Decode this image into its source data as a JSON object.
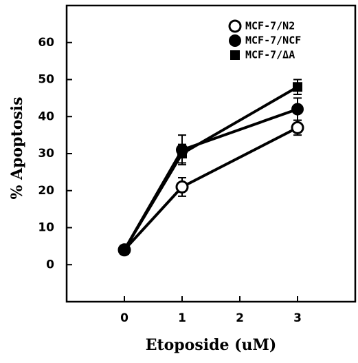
{
  "chart_data": {
    "type": "line",
    "x_label": "Etoposide (uM)",
    "y_label": "% Apoptosis",
    "x": [
      0,
      1,
      3
    ],
    "xlim": [
      -1,
      4
    ],
    "xticks": [
      0,
      1,
      2,
      3
    ],
    "ylim": [
      -10,
      70
    ],
    "yticks": [
      0,
      10,
      20,
      30,
      40,
      50,
      60
    ],
    "legend": "top-right",
    "series": [
      {
        "name": "MCF-7/N2",
        "color": "#000000",
        "marker": "open-circle",
        "values": [
          4,
          21,
          37
        ],
        "errors": [
          0.5,
          2.5,
          2
        ]
      },
      {
        "name": "MCF-7/NCF",
        "color": "#000000",
        "marker": "circle",
        "values": [
          4,
          31,
          42
        ],
        "errors": [
          0.5,
          4,
          3
        ]
      },
      {
        "name": "MCF-7/ΔA",
        "color": "#000000",
        "marker": "square",
        "values": [
          4,
          30,
          48
        ],
        "errors": [
          0.5,
          2.5,
          2
        ]
      }
    ]
  }
}
